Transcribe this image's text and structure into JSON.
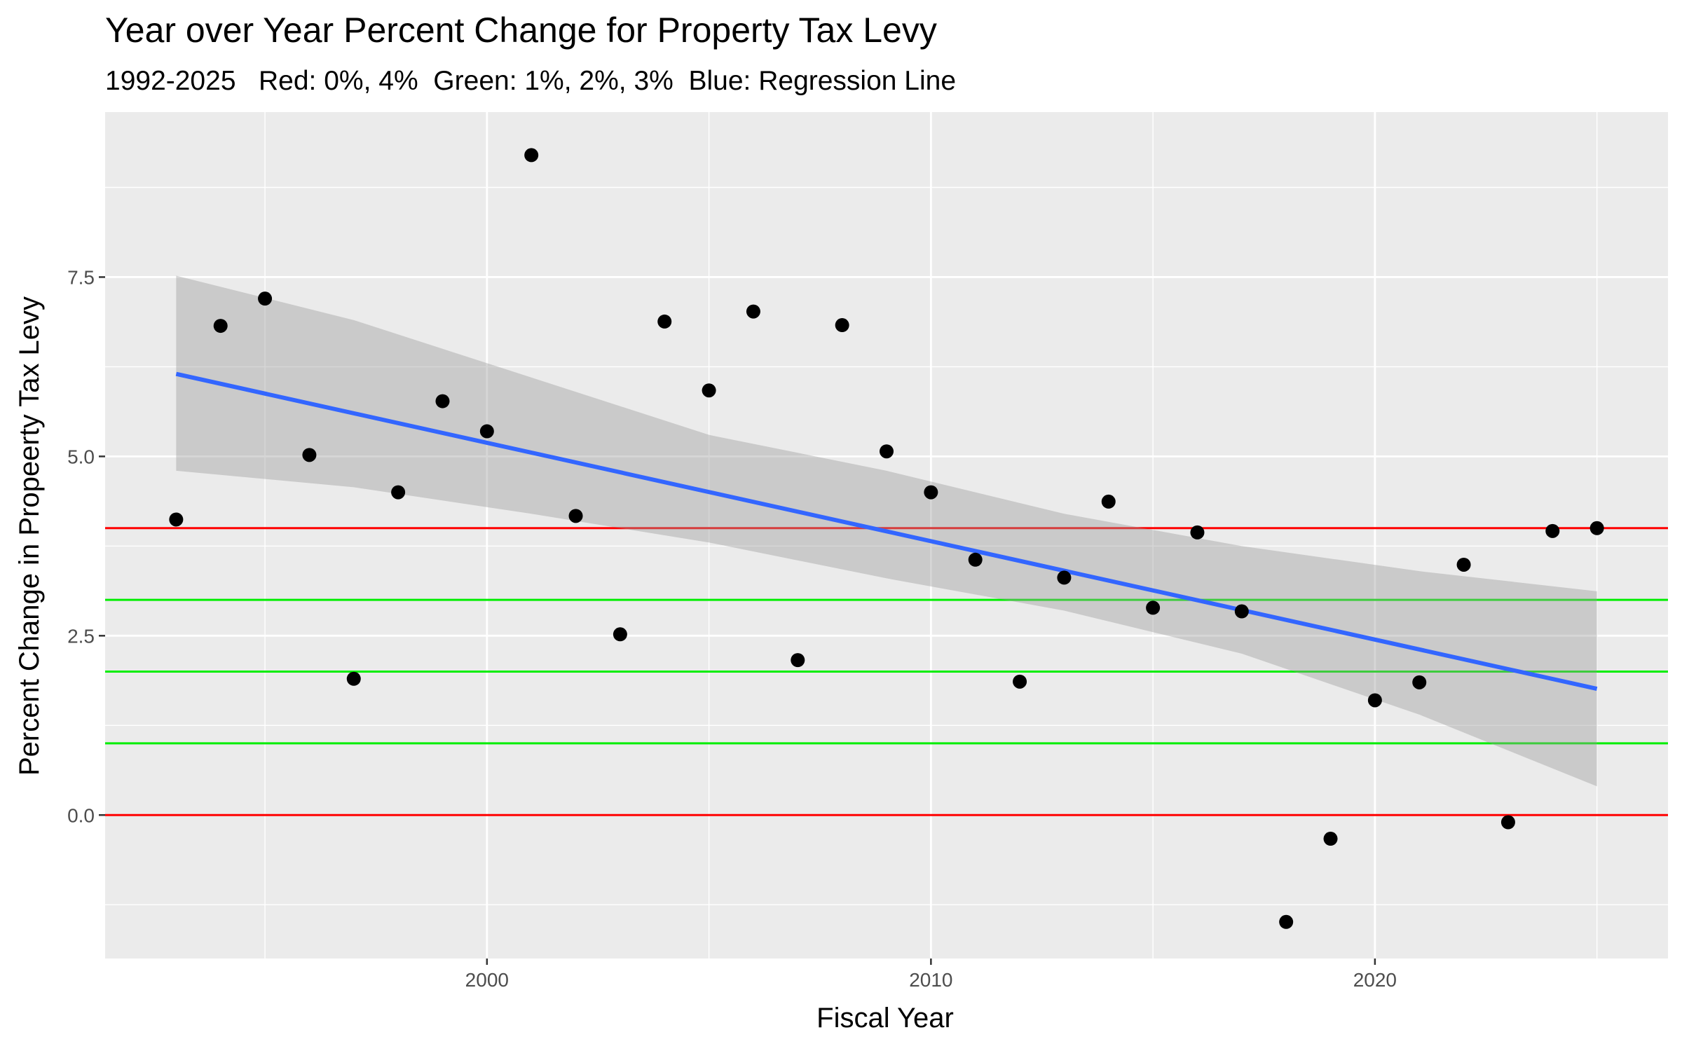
{
  "chart_data": {
    "type": "scatter",
    "title": "Year over Year Percent Change for Property Tax Levy",
    "subtitle": "1992-2025   Red: 0%, 4%  Green: 1%, 2%, 3%  Blue: Regression Line",
    "xlabel": "Fiscal Year",
    "ylabel": "Percent Change in Propeerty Tax Levy",
    "xlim": [
      1991.4,
      2026.6
    ],
    "ylim": [
      -2.0,
      9.8
    ],
    "x_ticks": [
      2000,
      2010,
      2020
    ],
    "x_tick_labels": [
      "2000",
      "2010",
      "2020"
    ],
    "x_minor_ticks": [
      1995,
      2005,
      2015,
      2025
    ],
    "y_ticks": [
      0.0,
      2.5,
      5.0,
      7.5
    ],
    "y_tick_labels": [
      "0.0",
      "2.5",
      "5.0",
      "7.5"
    ],
    "y_minor_ticks": [
      -1.25,
      1.25,
      3.75,
      6.25,
      8.75
    ],
    "grid": true,
    "panel_background": "#ebebeb",
    "series": [
      {
        "type": "scatter",
        "color": "#000000",
        "x": [
          1993,
          1994,
          1995,
          1996,
          1997,
          1998,
          1999,
          2000,
          2001,
          2002,
          2003,
          2004,
          2005,
          2006,
          2007,
          2008,
          2009,
          2010,
          2011,
          2012,
          2013,
          2014,
          2015,
          2016,
          2017,
          2018,
          2019,
          2020,
          2021,
          2022,
          2023,
          2024,
          2025
        ],
        "y": [
          4.12,
          6.82,
          7.2,
          5.02,
          1.9,
          4.5,
          5.77,
          5.35,
          9.2,
          4.17,
          2.52,
          6.88,
          5.92,
          7.02,
          2.16,
          6.83,
          5.07,
          4.5,
          3.56,
          1.86,
          3.31,
          4.37,
          2.89,
          3.94,
          2.84,
          -1.49,
          -0.33,
          1.6,
          1.85,
          3.49,
          -0.1,
          3.96,
          4.0
        ]
      },
      {
        "type": "regression",
        "color": "#3366ff",
        "x": [
          1993,
          2025
        ],
        "y": [
          6.15,
          1.76
        ]
      }
    ],
    "confidence_band": {
      "color": "#999999",
      "x": [
        1993,
        1997,
        2001,
        2005,
        2009,
        2013,
        2017,
        2021,
        2025
      ],
      "lower": [
        4.8,
        4.57,
        4.2,
        3.8,
        3.3,
        2.85,
        2.25,
        1.4,
        0.4
      ],
      "upper": [
        7.52,
        6.9,
        6.1,
        5.3,
        4.8,
        4.2,
        3.75,
        3.4,
        3.12
      ]
    },
    "reference_lines": [
      {
        "y": 0,
        "color": "#ff0000"
      },
      {
        "y": 4,
        "color": "#ff0000"
      },
      {
        "y": 1,
        "color": "#00ee00"
      },
      {
        "y": 2,
        "color": "#00ee00"
      },
      {
        "y": 3,
        "color": "#00ee00"
      }
    ]
  }
}
